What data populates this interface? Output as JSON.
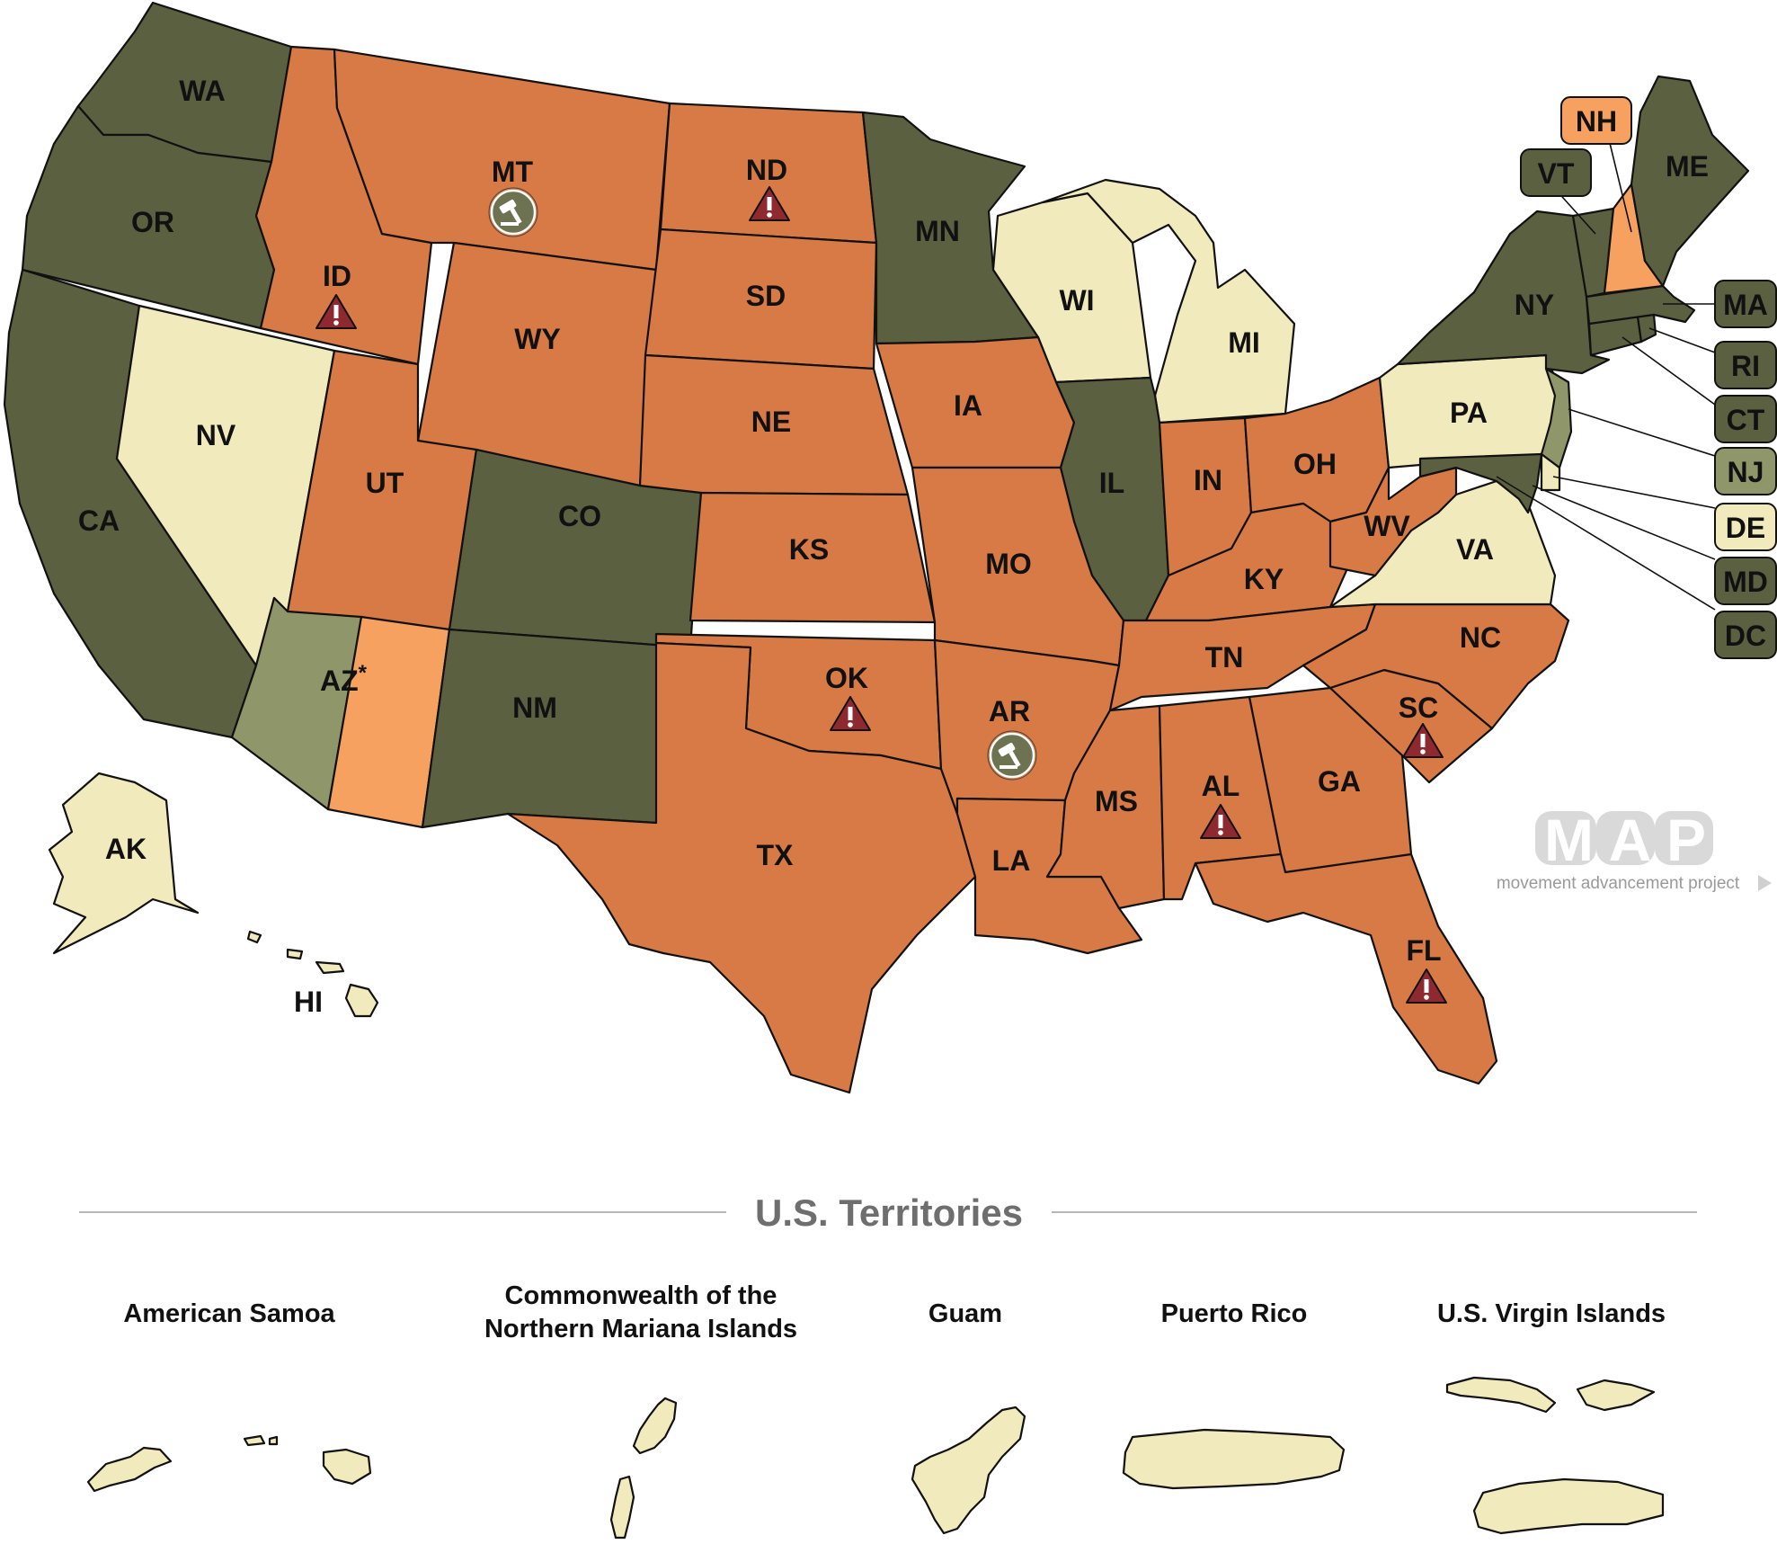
{
  "colors": {
    "dark_green": "#5b6140",
    "light_green": "#8f966a",
    "cream": "#f1eabc",
    "orange": "#d87a45",
    "light_orange": "#f7a160",
    "warning_red": "#8e2a2f",
    "gavel_green": "#6d7350"
  },
  "states": {
    "WA": "WA",
    "OR": "OR",
    "CA": "CA",
    "NV": "NV",
    "ID": "ID",
    "MT": "MT",
    "WY": "WY",
    "UT": "UT",
    "AZ": "AZ",
    "AZ_mark": "*",
    "CO": "CO",
    "NM": "NM",
    "ND": "ND",
    "SD": "SD",
    "NE": "NE",
    "KS": "KS",
    "OK": "OK",
    "TX": "TX",
    "MN": "MN",
    "IA": "IA",
    "MO": "MO",
    "AR": "AR",
    "LA": "LA",
    "WI": "WI",
    "IL": "IL",
    "MI": "MI",
    "IN": "IN",
    "OH": "OH",
    "KY": "KY",
    "TN": "TN",
    "MS": "MS",
    "AL": "AL",
    "GA": "GA",
    "FL": "FL",
    "SC": "SC",
    "NC": "NC",
    "VA": "VA",
    "WV": "WV",
    "PA": "PA",
    "NY": "NY",
    "ME": "ME",
    "AK": "AK",
    "HI": "HI"
  },
  "callouts": {
    "NH": "NH",
    "VT": "VT",
    "MA": "MA",
    "RI": "RI",
    "CT": "CT",
    "NJ": "NJ",
    "DE": "DE",
    "MD": "MD",
    "DC": "DC"
  },
  "markers": {
    "warning": [
      "ID",
      "ND",
      "OK",
      "AL",
      "SC",
      "FL"
    ],
    "gavel": [
      "MT",
      "AR"
    ]
  },
  "territories": {
    "heading": "U.S. Territories",
    "american_samoa": "American Samoa",
    "cnmi_line1": "Commonwealth of the",
    "cnmi_line2": "Northern Mariana Islands",
    "guam": "Guam",
    "puerto_rico": "Puerto Rico",
    "usvi": "U.S. Virgin Islands"
  },
  "logo": {
    "letters": "MAP",
    "sub": "movement advancement project",
    "arrow_icon": "triangle-right-icon"
  }
}
